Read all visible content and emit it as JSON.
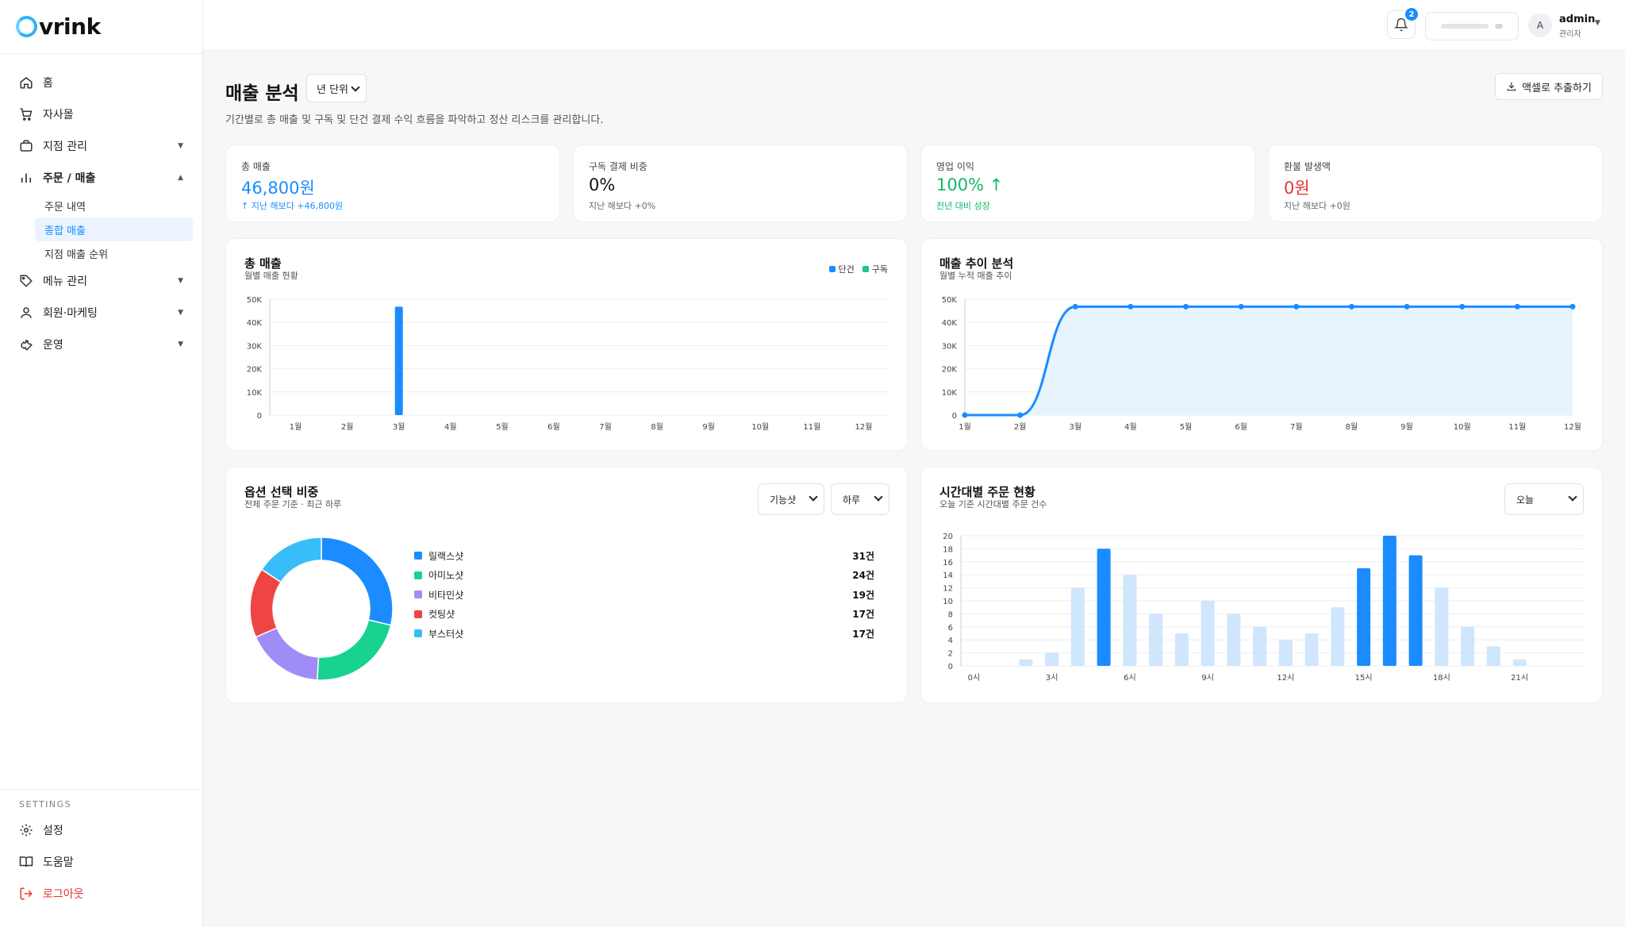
{
  "brand": {
    "name": "vrink"
  },
  "sidebar": {
    "items": [
      {
        "label": "홈",
        "icon": "home-icon"
      },
      {
        "label": "자사몰",
        "icon": "cart-icon"
      },
      {
        "label": "지점 관리",
        "icon": "briefcase-icon"
      },
      {
        "label": "주문 / 매출",
        "icon": "bar-chart-icon"
      },
      {
        "label": "메뉴 관리",
        "icon": "tag-icon"
      },
      {
        "label": "회원·마케팅",
        "icon": "user-icon"
      },
      {
        "label": "운영",
        "icon": "wrench-icon"
      }
    ],
    "sub_items": [
      "주문 내역",
      "종합 매출",
      "지점 매출 순위"
    ],
    "active_sub": "종합 매출",
    "settings_title": "SETTINGS",
    "footer_items": [
      {
        "label": "설정",
        "icon": "gear-icon"
      },
      {
        "label": "도움말",
        "icon": "book-icon"
      },
      {
        "label": "로그아웃",
        "icon": "logout-icon"
      }
    ]
  },
  "topbar": {
    "notification_count": "2",
    "user": {
      "avatar": "A",
      "name": "admin",
      "role": "관리자"
    }
  },
  "header": {
    "title": "매출 분석",
    "period": "년 단위",
    "description": "기간별로 총 매출 및 구독 및 단건 결제 수익 흐름을 파악하고 정산 리스크를 관리합니다.",
    "export_label": "액셀로 추출하기"
  },
  "kpis": [
    {
      "label": "총 매출",
      "value": "46,800원",
      "sub": "↑ 지난 해보다 +46,800원",
      "color": "#1a8cff"
    },
    {
      "label": "구독 결제 비중",
      "value": "0%",
      "sub": "지난 해보다 +0%",
      "color": "#111111"
    },
    {
      "label": "영업 이익",
      "value": "100% ↑",
      "sub": "전년 대비 성장",
      "color": "#12b76a"
    },
    {
      "label": "환불 발생액",
      "value": "0원",
      "sub": "지난 해보다 +0원",
      "color": "#e5352f"
    }
  ],
  "colors": {
    "primary": "#1a8cff",
    "subscription": "#17c98b",
    "light_bar": "#cfe6fd"
  },
  "chart_data": [
    {
      "type": "bar",
      "title": "총 매출",
      "subtitle": "월별 매출 현황",
      "categories": [
        "1월",
        "2월",
        "3월",
        "4월",
        "5월",
        "6월",
        "7월",
        "8월",
        "9월",
        "10월",
        "11월",
        "12월"
      ],
      "series": [
        {
          "name": "단건",
          "values": [
            0,
            0,
            46800,
            0,
            0,
            0,
            0,
            0,
            0,
            0,
            0,
            0
          ]
        },
        {
          "name": "구독",
          "values": [
            0,
            0,
            0,
            0,
            0,
            0,
            0,
            0,
            0,
            0,
            0,
            0
          ]
        }
      ],
      "y_ticks": [
        "0",
        "10K",
        "20K",
        "30K",
        "40K",
        "50K"
      ],
      "ylim": [
        0,
        50000
      ],
      "grid": true,
      "legend": "top-right"
    },
    {
      "type": "area",
      "title": "매출 추이 분석",
      "subtitle": "월별 누적 매출 추이",
      "categories": [
        "1월",
        "2월",
        "3월",
        "4월",
        "5월",
        "6월",
        "7월",
        "8월",
        "9월",
        "10월",
        "11월",
        "12월"
      ],
      "values": [
        0,
        0,
        46800,
        46800,
        46800,
        46800,
        46800,
        46800,
        46800,
        46800,
        46800,
        46800
      ],
      "y_ticks": [
        "0",
        "10K",
        "20K",
        "30K",
        "40K",
        "50K"
      ],
      "ylim": [
        0,
        50000
      ],
      "grid": true
    },
    {
      "type": "pie",
      "title": "옵션 선택 비중",
      "subtitle": "전체 주문 기준 · 최근 하루",
      "filters": [
        "기능샷",
        "하루"
      ],
      "labels": [
        "릴랙스샷",
        "아미노샷",
        "비타민샷",
        "컷팅샷",
        "부스터샷"
      ],
      "values": [
        31,
        24,
        19,
        17,
        17
      ],
      "value_labels": [
        "31건",
        "24건",
        "19건",
        "17건",
        "17건"
      ],
      "colors": [
        "#1a8cff",
        "#17d38f",
        "#a08cf7",
        "#ef4444",
        "#38bdf8"
      ]
    },
    {
      "type": "bar",
      "title": "시간대별 주문 현황",
      "subtitle": "오늘 기준 시간대별 주문 건수",
      "filter": "오늘",
      "x": [
        0,
        1,
        2,
        3,
        4,
        5,
        6,
        7,
        8,
        9,
        10,
        11,
        12,
        13,
        14,
        15,
        16,
        17,
        18,
        19,
        20,
        21,
        22,
        23
      ],
      "x_tick_labels": [
        "0시",
        "3시",
        "6시",
        "9시",
        "12시",
        "15시",
        "18시",
        "21시"
      ],
      "values": [
        0,
        0,
        1,
        2,
        12,
        18,
        14,
        8,
        5,
        10,
        8,
        6,
        4,
        5,
        9,
        15,
        20,
        17,
        12,
        6,
        3,
        1,
        0,
        0
      ],
      "highlighted_hours": [
        5,
        15,
        16,
        17
      ],
      "y_ticks": [
        "0",
        "2",
        "4",
        "6",
        "8",
        "10",
        "12",
        "14",
        "16",
        "18",
        "20"
      ],
      "ylim": [
        0,
        20
      ],
      "grid": true
    }
  ]
}
